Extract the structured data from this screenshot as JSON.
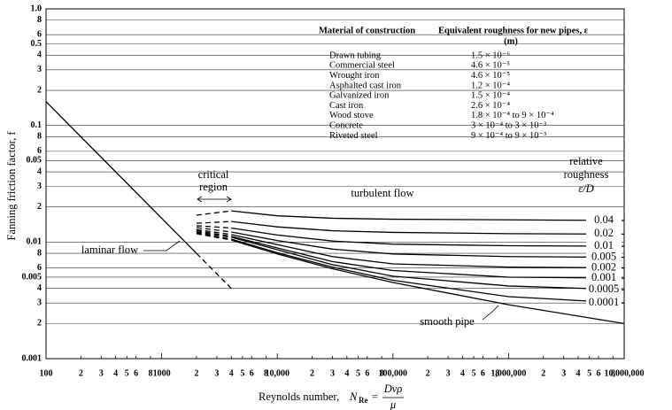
{
  "chart_data": {
    "type": "line",
    "log_x": true,
    "log_y": true,
    "grid": true,
    "ylabel": "Fanning friction factor, f",
    "xlabel": {
      "text": "Reynolds number,",
      "symbol": "N",
      "subscript": "Re",
      "equals": "=",
      "numerator": "Dvρ",
      "denominator": "μ"
    },
    "xlim": [
      100,
      10000000
    ],
    "ylim": [
      0.001,
      1
    ],
    "xticks": [
      100,
      {
        "value": 200,
        "label": "2"
      },
      {
        "value": 300,
        "label": "3"
      },
      {
        "value": 400,
        "label": "4"
      },
      {
        "value": 500,
        "label": "5"
      },
      {
        "value": 600,
        "label": "6"
      },
      {
        "value": 800,
        "label": "8"
      },
      1000,
      {
        "value": 2000,
        "label": "2"
      },
      {
        "value": 3000,
        "label": "3"
      },
      {
        "value": 4000,
        "label": "4"
      },
      {
        "value": 5000,
        "label": "5"
      },
      {
        "value": 6000,
        "label": "6"
      },
      {
        "value": 8000,
        "label": "8"
      },
      {
        "value": 10000,
        "label": "10,000"
      },
      {
        "value": 20000,
        "label": "2"
      },
      {
        "value": 30000,
        "label": "3"
      },
      {
        "value": 40000,
        "label": "4"
      },
      {
        "value": 50000,
        "label": "5"
      },
      {
        "value": 60000,
        "label": "6"
      },
      {
        "value": 80000,
        "label": "8"
      },
      {
        "value": 100000,
        "label": "100,000"
      },
      {
        "value": 200000,
        "label": "2"
      },
      {
        "value": 300000,
        "label": "3"
      },
      {
        "value": 400000,
        "label": "4"
      },
      {
        "value": 500000,
        "label": "5"
      },
      {
        "value": 600000,
        "label": "6"
      },
      {
        "value": 800000,
        "label": "8"
      },
      {
        "value": 1000000,
        "label": "1,000,000"
      },
      {
        "value": 2000000,
        "label": "2"
      },
      {
        "value": 3000000,
        "label": "3"
      },
      {
        "value": 4000000,
        "label": "4"
      },
      {
        "value": 5000000,
        "label": "5"
      },
      {
        "value": 6000000,
        "label": "6"
      },
      {
        "value": 8000000,
        "label": "8"
      },
      {
        "value": 10000000,
        "label": "10,000,000"
      }
    ],
    "yticks": [
      0.001,
      {
        "value": 0.002,
        "label": "2"
      },
      {
        "value": 0.003,
        "label": "3"
      },
      {
        "value": 0.004,
        "label": "4"
      },
      0.005,
      {
        "value": 0.006,
        "label": "6"
      },
      {
        "value": 0.008,
        "label": "8"
      },
      0.01,
      {
        "value": 0.02,
        "label": "2"
      },
      {
        "value": 0.03,
        "label": "3"
      },
      {
        "value": 0.04,
        "label": "4"
      },
      0.05,
      {
        "value": 0.06,
        "label": "6"
      },
      {
        "value": 0.08,
        "label": "8"
      },
      0.1,
      {
        "value": 0.2,
        "label": "2"
      },
      {
        "value": 0.3,
        "label": "3"
      },
      {
        "value": 0.4,
        "label": "4"
      },
      0.5,
      {
        "value": 0.6,
        "label": "6"
      },
      {
        "value": 0.8,
        "label": "8"
      },
      {
        "value": 1,
        "label": "1.0"
      }
    ],
    "critical_region": [
      2000,
      4000
    ],
    "critical_region_label": [
      "critical",
      "region"
    ],
    "turbulent_label": "turbulent flow",
    "legend_title": [
      "relative",
      "roughness",
      "ε/D"
    ],
    "series": [
      {
        "name": "laminar flow",
        "color": "#000000",
        "x": [
          100,
          2000,
          4000
        ],
        "values": [
          0.16,
          0.008,
          0.004
        ]
      },
      {
        "name": "0.04",
        "color": "#000000",
        "x": [
          2000,
          4000,
          10000,
          30000,
          100000,
          1000000,
          10000000
        ],
        "values": [
          0.017,
          0.0185,
          0.0168,
          0.016,
          0.0157,
          0.0155,
          0.0153
        ]
      },
      {
        "name": "0.02",
        "color": "#000000",
        "x": [
          2000,
          4000,
          10000,
          30000,
          100000,
          1000000,
          10000000
        ],
        "values": [
          0.0145,
          0.015,
          0.0135,
          0.0125,
          0.0121,
          0.0118,
          0.0117
        ]
      },
      {
        "name": "0.01",
        "color": "#000000",
        "x": [
          2000,
          4000,
          10000,
          30000,
          100000,
          1000000,
          10000000
        ],
        "values": [
          0.0138,
          0.0132,
          0.0115,
          0.0102,
          0.0096,
          0.0093,
          0.0092
        ]
      },
      {
        "name": "0.005",
        "color": "#000000",
        "x": [
          2000,
          4000,
          10000,
          30000,
          100000,
          1000000,
          10000000
        ],
        "values": [
          0.0133,
          0.0122,
          0.0103,
          0.0087,
          0.0079,
          0.0075,
          0.0074
        ]
      },
      {
        "name": "0.002",
        "color": "#000000",
        "x": [
          2000,
          4000,
          10000,
          30000,
          100000,
          1000000,
          10000000
        ],
        "values": [
          0.0128,
          0.0116,
          0.0095,
          0.0075,
          0.0065,
          0.0061,
          0.006
        ]
      },
      {
        "name": "0.001",
        "color": "#000000",
        "x": [
          2000,
          4000,
          10000,
          30000,
          100000,
          1000000,
          10000000
        ],
        "values": [
          0.0125,
          0.0112,
          0.0089,
          0.0068,
          0.0057,
          0.005,
          0.0049
        ]
      },
      {
        "name": "0.0005",
        "color": "#000000",
        "x": [
          2000,
          4000,
          10000,
          30000,
          100000,
          1000000,
          10000000
        ],
        "values": [
          0.0122,
          0.011,
          0.0086,
          0.0064,
          0.0051,
          0.0042,
          0.0039
        ]
      },
      {
        "name": "0.0001",
        "color": "#000000",
        "x": [
          2000,
          4000,
          10000,
          30000,
          100000,
          1000000,
          10000000
        ],
        "values": [
          0.012,
          0.0106,
          0.0081,
          0.0061,
          0.0047,
          0.0034,
          0.003
        ]
      },
      {
        "name": "smooth pipe",
        "color": "#000000",
        "x": [
          2000,
          4000,
          10000,
          30000,
          100000,
          1000000,
          10000000
        ],
        "values": [
          0.0118,
          0.0104,
          0.0079,
          0.0059,
          0.0045,
          0.0029,
          0.002
        ]
      }
    ],
    "table": {
      "columns": [
        "Material of construction",
        "Equivalent roughness for new pipes, ε"
      ],
      "unit": "(m)",
      "rows": [
        [
          "Drawn tubing",
          "1.5 × 10⁻⁶"
        ],
        [
          "Commercial steel",
          "4.6 × 10⁻⁵"
        ],
        [
          "Wrought iron",
          "4.6 × 10⁻⁵"
        ],
        [
          "Asphalted cast iron",
          "1.2 × 10⁻⁴"
        ],
        [
          "Galvanized iron",
          "1.5 × 10⁻⁴"
        ],
        [
          "Cast iron",
          "2.6 × 10⁻⁴"
        ],
        [
          "Wood stove",
          "1.8 × 10⁻⁴ to 9 × 10⁻⁴"
        ],
        [
          "Concrete",
          "3 × 10⁻⁴ to 3 × 10⁻³"
        ],
        [
          "Riveted steel",
          "9 × 10⁻⁴ to 9 × 10⁻³"
        ]
      ]
    }
  }
}
